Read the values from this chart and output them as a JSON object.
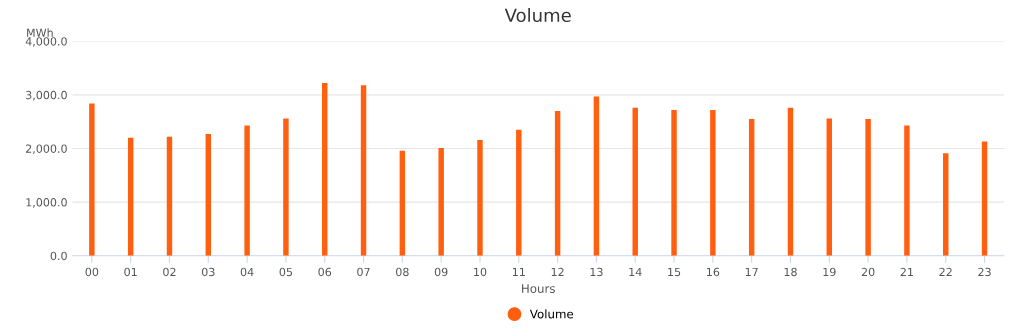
{
  "chart_data": {
    "type": "bar",
    "title": "Volume",
    "ylabel": "MWh",
    "xlabel": "Hours",
    "categories": [
      "00",
      "01",
      "02",
      "03",
      "04",
      "05",
      "06",
      "07",
      "08",
      "09",
      "10",
      "11",
      "12",
      "13",
      "14",
      "15",
      "16",
      "17",
      "18",
      "19",
      "20",
      "21",
      "22",
      "23"
    ],
    "series": [
      {
        "name": "Volume",
        "color": "#ff5f0f",
        "values": [
          2840,
          2200,
          2220,
          2270,
          2430,
          2560,
          3220,
          3180,
          1960,
          2010,
          2160,
          2350,
          2700,
          2970,
          2760,
          2720,
          2720,
          2550,
          2760,
          2560,
          2550,
          2430,
          1910,
          2130
        ]
      }
    ],
    "ylim": [
      0,
      4000
    ],
    "yticks": [
      {
        "value": 0,
        "label": "0.0"
      },
      {
        "value": 1000,
        "label": "1,000.0"
      },
      {
        "value": 2000,
        "label": "2,000.0"
      },
      {
        "value": 3000,
        "label": "3,000.0"
      },
      {
        "value": 4000,
        "label": "4,000.0"
      }
    ],
    "grid": "y",
    "legend": "bottom"
  }
}
